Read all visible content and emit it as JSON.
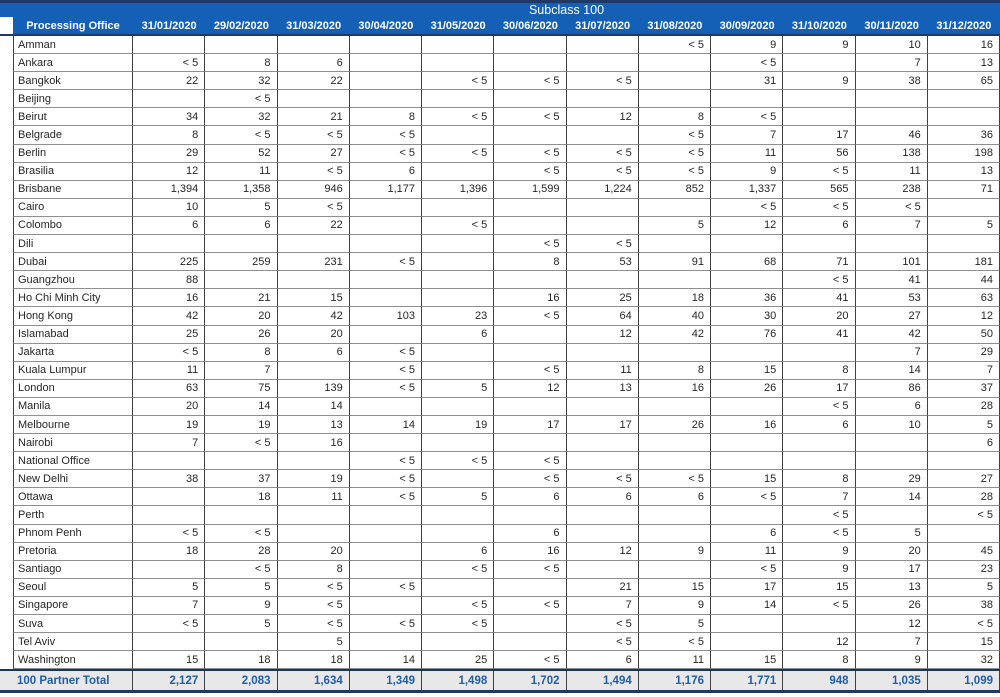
{
  "title": "Subclass 100",
  "colors": {
    "header_bg": "#1560B7",
    "header_text": "#FFFFFF",
    "navy_border": "#1F3864",
    "grid_vertical": "#404040",
    "grid_horizontal": "#8F8F8F",
    "data_text": "#262626",
    "total_bg": "#E8E8E8",
    "total_text": "#1F5EA8"
  },
  "chart_data": {
    "type": "table",
    "title": "Subclass 100",
    "office_header": "Processing Office",
    "columns": [
      "31/01/2020",
      "29/02/2020",
      "31/03/2020",
      "30/04/2020",
      "31/05/2020",
      "30/06/2020",
      "31/07/2020",
      "31/08/2020",
      "30/09/2020",
      "31/10/2020",
      "30/11/2020",
      "31/12/2020"
    ],
    "rows": [
      {
        "office": "Amman",
        "values": [
          "",
          "",
          "",
          "",
          "",
          "",
          "",
          "< 5",
          "9",
          "9",
          "10",
          "16"
        ]
      },
      {
        "office": "Ankara",
        "values": [
          "< 5",
          "8",
          "6",
          "",
          "",
          "",
          "",
          "",
          "< 5",
          "",
          "7",
          "13"
        ]
      },
      {
        "office": "Bangkok",
        "values": [
          "22",
          "32",
          "22",
          "",
          "< 5",
          "< 5",
          "< 5",
          "",
          "31",
          "9",
          "38",
          "65"
        ]
      },
      {
        "office": "Beijing",
        "values": [
          "",
          "< 5",
          "",
          "",
          "",
          "",
          "",
          "",
          "",
          "",
          "",
          ""
        ]
      },
      {
        "office": "Beirut",
        "values": [
          "34",
          "32",
          "21",
          "8",
          "< 5",
          "< 5",
          "12",
          "8",
          "< 5",
          "",
          "",
          ""
        ]
      },
      {
        "office": "Belgrade",
        "values": [
          "8",
          "< 5",
          "< 5",
          "< 5",
          "",
          "",
          "",
          "< 5",
          "7",
          "17",
          "46",
          "36"
        ]
      },
      {
        "office": "Berlin",
        "values": [
          "29",
          "52",
          "27",
          "< 5",
          "< 5",
          "< 5",
          "< 5",
          "< 5",
          "11",
          "56",
          "138",
          "198"
        ]
      },
      {
        "office": "Brasilia",
        "values": [
          "12",
          "11",
          "< 5",
          "6",
          "",
          "< 5",
          "< 5",
          "< 5",
          "9",
          "< 5",
          "11",
          "13"
        ]
      },
      {
        "office": "Brisbane",
        "values": [
          "1,394",
          "1,358",
          "946",
          "1,177",
          "1,396",
          "1,599",
          "1,224",
          "852",
          "1,337",
          "565",
          "238",
          "71"
        ]
      },
      {
        "office": "Cairo",
        "values": [
          "10",
          "5",
          "< 5",
          "",
          "",
          "",
          "",
          "",
          "< 5",
          "< 5",
          "< 5",
          ""
        ]
      },
      {
        "office": "Colombo",
        "values": [
          "6",
          "6",
          "22",
          "",
          "< 5",
          "",
          "",
          "5",
          "12",
          "6",
          "7",
          "5"
        ]
      },
      {
        "office": "Dili",
        "values": [
          "",
          "",
          "",
          "",
          "",
          "< 5",
          "< 5",
          "",
          "",
          "",
          "",
          ""
        ]
      },
      {
        "office": "Dubai",
        "values": [
          "225",
          "259",
          "231",
          "< 5",
          "",
          "8",
          "53",
          "91",
          "68",
          "71",
          "101",
          "181"
        ]
      },
      {
        "office": "Guangzhou",
        "values": [
          "88",
          "",
          "",
          "",
          "",
          "",
          "",
          "",
          "",
          "< 5",
          "41",
          "44"
        ]
      },
      {
        "office": "Ho Chi Minh City",
        "values": [
          "16",
          "21",
          "15",
          "",
          "",
          "16",
          "25",
          "18",
          "36",
          "41",
          "53",
          "63"
        ]
      },
      {
        "office": "Hong Kong",
        "values": [
          "42",
          "20",
          "42",
          "103",
          "23",
          "< 5",
          "64",
          "40",
          "30",
          "20",
          "27",
          "12"
        ]
      },
      {
        "office": "Islamabad",
        "values": [
          "25",
          "26",
          "20",
          "",
          "6",
          "",
          "12",
          "42",
          "76",
          "41",
          "42",
          "50"
        ]
      },
      {
        "office": "Jakarta",
        "values": [
          "< 5",
          "8",
          "6",
          "< 5",
          "",
          "",
          "",
          "",
          "",
          "",
          "7",
          "29"
        ]
      },
      {
        "office": "Kuala Lumpur",
        "values": [
          "11",
          "7",
          "",
          "< 5",
          "",
          "< 5",
          "11",
          "8",
          "15",
          "8",
          "14",
          "7"
        ]
      },
      {
        "office": "London",
        "values": [
          "63",
          "75",
          "139",
          "< 5",
          "5",
          "12",
          "13",
          "16",
          "26",
          "17",
          "86",
          "37"
        ]
      },
      {
        "office": "Manila",
        "values": [
          "20",
          "14",
          "14",
          "",
          "",
          "",
          "",
          "",
          "",
          "< 5",
          "6",
          "28"
        ]
      },
      {
        "office": "Melbourne",
        "values": [
          "19",
          "19",
          "13",
          "14",
          "19",
          "17",
          "17",
          "26",
          "16",
          "6",
          "10",
          "5"
        ]
      },
      {
        "office": "Nairobi",
        "values": [
          "7",
          "< 5",
          "16",
          "",
          "",
          "",
          "",
          "",
          "",
          "",
          "",
          "6"
        ]
      },
      {
        "office": "National Office",
        "values": [
          "",
          "",
          "",
          "< 5",
          "< 5",
          "< 5",
          "",
          "",
          "",
          "",
          "",
          ""
        ]
      },
      {
        "office": "New Delhi",
        "values": [
          "38",
          "37",
          "19",
          "< 5",
          "",
          "< 5",
          "< 5",
          "< 5",
          "15",
          "8",
          "29",
          "27"
        ]
      },
      {
        "office": "Ottawa",
        "values": [
          "",
          "18",
          "11",
          "< 5",
          "5",
          "6",
          "6",
          "6",
          "< 5",
          "7",
          "14",
          "28"
        ]
      },
      {
        "office": "Perth",
        "values": [
          "",
          "",
          "",
          "",
          "",
          "",
          "",
          "",
          "",
          "< 5",
          "",
          "< 5"
        ]
      },
      {
        "office": "Phnom Penh",
        "values": [
          "< 5",
          "< 5",
          "",
          "",
          "",
          "6",
          "",
          "",
          "6",
          "< 5",
          "5",
          ""
        ]
      },
      {
        "office": "Pretoria",
        "values": [
          "18",
          "28",
          "20",
          "",
          "6",
          "16",
          "12",
          "9",
          "11",
          "9",
          "20",
          "45"
        ]
      },
      {
        "office": "Santiago",
        "values": [
          "",
          "< 5",
          "8",
          "",
          "< 5",
          "< 5",
          "",
          "",
          "< 5",
          "9",
          "17",
          "23"
        ]
      },
      {
        "office": "Seoul",
        "values": [
          "5",
          "5",
          "< 5",
          "< 5",
          "",
          "",
          "21",
          "15",
          "17",
          "15",
          "13",
          "5"
        ]
      },
      {
        "office": "Singapore",
        "values": [
          "7",
          "9",
          "< 5",
          "",
          "< 5",
          "< 5",
          "7",
          "9",
          "14",
          "< 5",
          "26",
          "38"
        ]
      },
      {
        "office": "Suva",
        "values": [
          "< 5",
          "5",
          "< 5",
          "< 5",
          "< 5",
          "",
          "< 5",
          "5",
          "",
          "",
          "12",
          "< 5"
        ]
      },
      {
        "office": "Tel Aviv",
        "values": [
          "",
          "",
          "5",
          "",
          "",
          "",
          "< 5",
          "< 5",
          "",
          "12",
          "7",
          "15"
        ]
      },
      {
        "office": "Washington",
        "values": [
          "15",
          "18",
          "18",
          "14",
          "25",
          "< 5",
          "6",
          "11",
          "15",
          "8",
          "9",
          "32"
        ]
      }
    ],
    "total": {
      "label": "100 Partner Total",
      "values": [
        "2,127",
        "2,083",
        "1,634",
        "1,349",
        "1,498",
        "1,702",
        "1,494",
        "1,176",
        "1,771",
        "948",
        "1,035",
        "1,099"
      ]
    }
  }
}
